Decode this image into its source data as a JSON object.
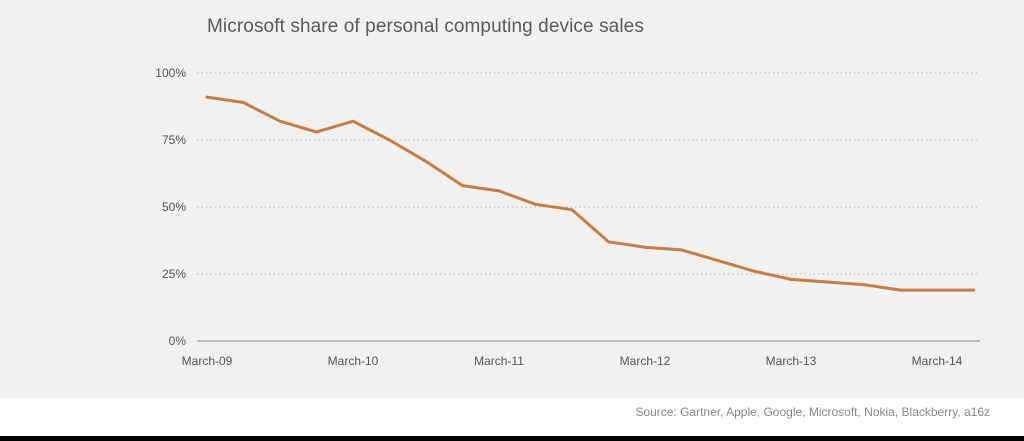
{
  "chart_data": {
    "type": "line",
    "title": "Microsoft share of personal computing device sales",
    "xlabel": "",
    "ylabel": "",
    "x_ticks": [
      "March-09",
      "March-10",
      "March-11",
      "March-12",
      "March-13",
      "March-14"
    ],
    "y_ticks": [
      "0%",
      "25%",
      "50%",
      "75%",
      "100%"
    ],
    "ylim": [
      0,
      100
    ],
    "grid": "horizontal dotted",
    "series": [
      {
        "color": "#c87d45",
        "quarters": [
          "Q1 2009",
          "Q2 2009",
          "Q3 2009",
          "Q4 2009",
          "Q1 2010",
          "Q2 2010",
          "Q3 2010",
          "Q4 2010",
          "Q1 2011",
          "Q2 2011",
          "Q3 2011",
          "Q4 2011",
          "Q1 2012",
          "Q2 2012",
          "Q3 2012",
          "Q4 2012",
          "Q1 2013",
          "Q2 2013",
          "Q3 2013",
          "Q4 2013",
          "Q1 2014",
          "Q2 2014"
        ],
        "values": [
          91,
          89,
          82,
          78,
          82,
          75,
          67,
          58,
          56,
          51,
          49,
          37,
          35,
          34,
          30,
          26,
          23,
          22,
          21,
          19,
          19,
          19
        ]
      }
    ]
  },
  "source": "Source: Gartner, Apple, Google, Microsoft, Nokia, Blackberry, a16z"
}
